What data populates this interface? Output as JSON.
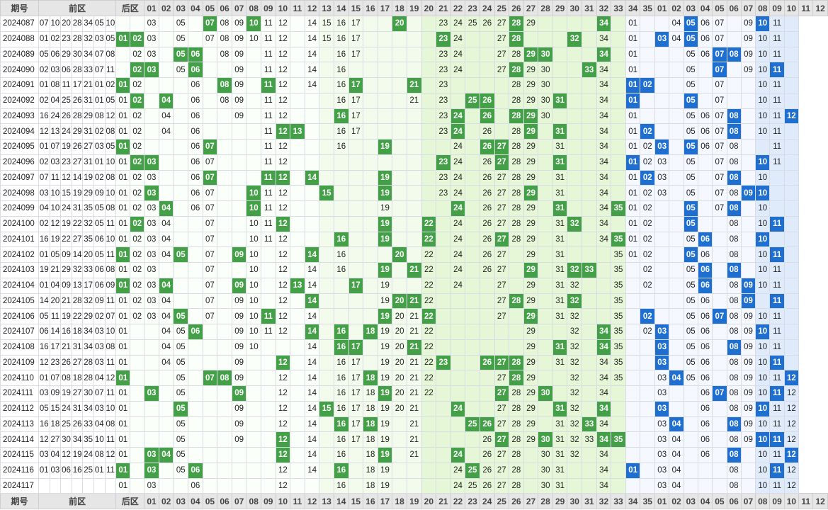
{
  "header": {
    "issue": "期号",
    "front": "前区",
    "back": "后区"
  },
  "front_columns": [
    "01",
    "02",
    "03",
    "04",
    "05",
    "06",
    "07",
    "08",
    "09",
    "10",
    "11",
    "12",
    "13",
    "14",
    "15",
    "16",
    "17",
    "18",
    "19",
    "20",
    "21",
    "22",
    "23",
    "24",
    "25",
    "26",
    "27",
    "28",
    "29",
    "30",
    "31",
    "32",
    "33",
    "34",
    "35"
  ],
  "back_columns": [
    "01",
    "02",
    "03",
    "04",
    "05",
    "06",
    "07",
    "08",
    "09",
    "10",
    "11",
    "12"
  ],
  "rows": [
    {
      "issue": "2024087",
      "front": [
        "07",
        "10",
        "20",
        "28",
        "34"
      ],
      "back": [
        "05",
        "10"
      ],
      "ff": [
        "03",
        "05",
        "08",
        "09",
        "11",
        "12",
        "14",
        "15",
        "16",
        "17",
        "23",
        "24",
        "25",
        "26",
        "27",
        "29"
      ],
      "bf": [
        "01",
        "04",
        "06",
        "07",
        "09",
        "11"
      ]
    },
    {
      "issue": "2024088",
      "front": [
        "01",
        "02",
        "23",
        "28",
        "32"
      ],
      "back": [
        "03",
        "05"
      ],
      "ff": [
        "03",
        "05",
        "07",
        "08",
        "09",
        "10",
        "11",
        "12",
        "14",
        "15",
        "16",
        "17",
        "24",
        "27",
        "34"
      ],
      "bf": [
        "01",
        "04",
        "06",
        "07",
        "09",
        "10",
        "11"
      ]
    },
    {
      "issue": "2024089",
      "front": [
        "05",
        "06",
        "29",
        "30",
        "34"
      ],
      "back": [
        "07",
        "08"
      ],
      "ff": [
        "02",
        "03",
        "08",
        "09",
        "11",
        "12",
        "14",
        "16",
        "17",
        "23",
        "24",
        "27",
        "28"
      ],
      "bf": [
        "01",
        "05",
        "06",
        "09",
        "10",
        "11"
      ]
    },
    {
      "issue": "2024090",
      "front": [
        "02",
        "03",
        "06",
        "28",
        "33"
      ],
      "back": [
        "07",
        "11"
      ],
      "ff": [
        "05",
        "09",
        "11",
        "12",
        "14",
        "16",
        "23",
        "24",
        "27",
        "29",
        "30",
        "34"
      ],
      "bf": [
        "01",
        "05",
        "09",
        "10"
      ]
    },
    {
      "issue": "2024091",
      "front": [
        "01",
        "08",
        "11",
        "17",
        "21"
      ],
      "back": [
        "01",
        "02"
      ],
      "ff": [
        "02",
        "06",
        "09",
        "12",
        "14",
        "16",
        "23",
        "28",
        "29",
        "30",
        "34"
      ],
      "bf": [
        "05",
        "07",
        "10",
        "11"
      ]
    },
    {
      "issue": "2024092",
      "front": [
        "02",
        "04",
        "25",
        "26",
        "31"
      ],
      "back": [
        "01",
        "05"
      ],
      "ff": [
        "01",
        "06",
        "08",
        "09",
        "11",
        "12",
        "16",
        "17",
        "21",
        "23",
        "28",
        "29",
        "30",
        "34"
      ],
      "bf": [
        "05",
        "07",
        "10",
        "11"
      ]
    },
    {
      "issue": "2024093",
      "front": [
        "16",
        "24",
        "26",
        "28",
        "29"
      ],
      "back": [
        "08",
        "12"
      ],
      "ff": [
        "01",
        "02",
        "04",
        "06",
        "09",
        "11",
        "12",
        "17",
        "23",
        "30",
        "34"
      ],
      "bf": [
        "01",
        "05",
        "06",
        "07",
        "10",
        "11"
      ]
    },
    {
      "issue": "2024094",
      "front": [
        "12",
        "13",
        "24",
        "29",
        "31"
      ],
      "back": [
        "02",
        "08"
      ],
      "ff": [
        "01",
        "02",
        "04",
        "06",
        "11",
        "16",
        "17",
        "23",
        "26",
        "28",
        "34"
      ],
      "bf": [
        "01",
        "05",
        "06",
        "07",
        "10",
        "11"
      ]
    },
    {
      "issue": "2024095",
      "front": [
        "01",
        "07",
        "19",
        "26",
        "27"
      ],
      "back": [
        "03",
        "05"
      ],
      "ff": [
        "02",
        "06",
        "11",
        "12",
        "16",
        "24",
        "28",
        "29",
        "31",
        "34"
      ],
      "bf": [
        "01",
        "02",
        "06",
        "07",
        "08",
        "11"
      ]
    },
    {
      "issue": "2024096",
      "front": [
        "02",
        "03",
        "23",
        "27",
        "31"
      ],
      "back": [
        "01",
        "10"
      ],
      "ff": [
        "01",
        "06",
        "07",
        "11",
        "12",
        "24",
        "26",
        "28",
        "29",
        "34"
      ],
      "bf": [
        "02",
        "03",
        "05",
        "07",
        "08",
        "11"
      ]
    },
    {
      "issue": "2024097",
      "front": [
        "07",
        "11",
        "12",
        "14",
        "19"
      ],
      "back": [
        "02",
        "08"
      ],
      "ff": [
        "01",
        "02",
        "03",
        "06",
        "23",
        "24",
        "26",
        "27",
        "28",
        "29",
        "31",
        "34"
      ],
      "bf": [
        "01",
        "03",
        "05",
        "07",
        "10"
      ]
    },
    {
      "issue": "2024098",
      "front": [
        "03",
        "10",
        "15",
        "19",
        "29"
      ],
      "back": [
        "09",
        "10"
      ],
      "ff": [
        "01",
        "02",
        "06",
        "07",
        "11",
        "12",
        "23",
        "24",
        "26",
        "27",
        "28",
        "31",
        "34"
      ],
      "bf": [
        "01",
        "02",
        "03",
        "05",
        "07",
        "08"
      ]
    },
    {
      "issue": "2024099",
      "front": [
        "04",
        "10",
        "24",
        "31",
        "35"
      ],
      "back": [
        "05",
        "08"
      ],
      "ff": [
        "01",
        "02",
        "03",
        "06",
        "07",
        "11",
        "12",
        "19",
        "26",
        "27",
        "28",
        "29",
        "34"
      ],
      "bf": [
        "01",
        "02",
        "07",
        "10"
      ]
    },
    {
      "issue": "2024100",
      "front": [
        "02",
        "12",
        "19",
        "22",
        "32"
      ],
      "back": [
        "05",
        "11"
      ],
      "ff": [
        "01",
        "03",
        "04",
        "07",
        "10",
        "11",
        "24",
        "26",
        "27",
        "28",
        "29",
        "31",
        "34"
      ],
      "bf": [
        "01",
        "02",
        "08",
        "10"
      ]
    },
    {
      "issue": "2024101",
      "front": [
        "16",
        "19",
        "22",
        "27",
        "35"
      ],
      "back": [
        "06",
        "10"
      ],
      "ff": [
        "01",
        "02",
        "03",
        "04",
        "07",
        "10",
        "11",
        "12",
        "24",
        "26",
        "28",
        "29",
        "31",
        "34"
      ],
      "bf": [
        "01",
        "02",
        "05",
        "08"
      ]
    },
    {
      "issue": "2024102",
      "front": [
        "01",
        "05",
        "09",
        "14",
        "20"
      ],
      "back": [
        "05",
        "11"
      ],
      "ff": [
        "02",
        "03",
        "04",
        "07",
        "10",
        "12",
        "16",
        "22",
        "24",
        "26",
        "27",
        "29",
        "31",
        "35"
      ],
      "bf": [
        "01",
        "02",
        "06",
        "08",
        "10"
      ]
    },
    {
      "issue": "2024103",
      "front": [
        "19",
        "21",
        "29",
        "32",
        "33"
      ],
      "back": [
        "06",
        "08"
      ],
      "ff": [
        "01",
        "02",
        "03",
        "07",
        "10",
        "12",
        "14",
        "16",
        "22",
        "24",
        "26",
        "27",
        "31",
        "35"
      ],
      "bf": [
        "02",
        "05",
        "10",
        "11"
      ]
    },
    {
      "issue": "2024104",
      "front": [
        "01",
        "04",
        "09",
        "13",
        "17"
      ],
      "back": [
        "06",
        "09"
      ],
      "ff": [
        "02",
        "03",
        "07",
        "10",
        "12",
        "14",
        "19",
        "22",
        "24",
        "27",
        "29",
        "31",
        "32",
        "35"
      ],
      "bf": [
        "02",
        "05",
        "08",
        "10",
        "11"
      ]
    },
    {
      "issue": "2024105",
      "front": [
        "14",
        "20",
        "21",
        "28",
        "32"
      ],
      "back": [
        "09",
        "11"
      ],
      "ff": [
        "01",
        "02",
        "03",
        "04",
        "07",
        "09",
        "10",
        "12",
        "19",
        "22",
        "27",
        "29",
        "31",
        "35"
      ],
      "bf": [
        "05",
        "06",
        "08"
      ]
    },
    {
      "issue": "2024106",
      "front": [
        "05",
        "11",
        "19",
        "22",
        "29"
      ],
      "back": [
        "02",
        "07"
      ],
      "ff": [
        "01",
        "02",
        "03",
        "04",
        "07",
        "09",
        "10",
        "12",
        "14",
        "20",
        "21",
        "27",
        "31",
        "32",
        "35"
      ],
      "bf": [
        "05",
        "06",
        "08",
        "09",
        "10",
        "11"
      ]
    },
    {
      "issue": "2024107",
      "front": [
        "06",
        "14",
        "16",
        "18",
        "34"
      ],
      "back": [
        "03",
        "10"
      ],
      "ff": [
        "01",
        "04",
        "05",
        "09",
        "10",
        "11",
        "12",
        "19",
        "20",
        "21",
        "22",
        "29",
        "32",
        "35"
      ],
      "bf": [
        "02",
        "05",
        "06",
        "08",
        "09",
        "11"
      ]
    },
    {
      "issue": "2024108",
      "front": [
        "16",
        "17",
        "21",
        "31",
        "34"
      ],
      "back": [
        "03",
        "08"
      ],
      "ff": [
        "01",
        "04",
        "05",
        "09",
        "10",
        "14",
        "19",
        "20",
        "22",
        "29",
        "32",
        "35"
      ],
      "bf": [
        "05",
        "06",
        "09",
        "10",
        "11"
      ]
    },
    {
      "issue": "2024109",
      "front": [
        "12",
        "23",
        "26",
        "27",
        "28"
      ],
      "back": [
        "03",
        "11"
      ],
      "ff": [
        "01",
        "04",
        "05",
        "09",
        "14",
        "16",
        "17",
        "19",
        "20",
        "21",
        "22",
        "29",
        "31",
        "32",
        "34",
        "35"
      ],
      "bf": [
        "05",
        "06",
        "08",
        "09",
        "10"
      ]
    },
    {
      "issue": "2024110",
      "front": [
        "01",
        "07",
        "08",
        "18",
        "28"
      ],
      "back": [
        "04",
        "12"
      ],
      "ff": [
        "05",
        "09",
        "12",
        "14",
        "16",
        "17",
        "19",
        "20",
        "21",
        "22",
        "27",
        "29",
        "32",
        "34",
        "35"
      ],
      "bf": [
        "03",
        "05",
        "06",
        "08",
        "09",
        "10",
        "11"
      ]
    },
    {
      "issue": "2024111",
      "front": [
        "03",
        "09",
        "19",
        "27",
        "30"
      ],
      "back": [
        "07",
        "11"
      ],
      "ff": [
        "01",
        "05",
        "12",
        "14",
        "16",
        "17",
        "18",
        "20",
        "21",
        "22",
        "28",
        "29",
        "32",
        "34"
      ],
      "bf": [
        "03",
        "06",
        "08",
        "09",
        "10",
        "12"
      ]
    },
    {
      "issue": "2024112",
      "front": [
        "05",
        "15",
        "24",
        "31",
        "34"
      ],
      "back": [
        "03",
        "10"
      ],
      "ff": [
        "01",
        "09",
        "12",
        "14",
        "16",
        "17",
        "18",
        "19",
        "20",
        "21",
        "27",
        "28",
        "29",
        "32"
      ],
      "bf": [
        "06",
        "08",
        "09",
        "11",
        "12"
      ]
    },
    {
      "issue": "2024113",
      "front": [
        "16",
        "18",
        "25",
        "26",
        "33"
      ],
      "back": [
        "04",
        "08"
      ],
      "ff": [
        "01",
        "05",
        "09",
        "12",
        "14",
        "17",
        "19",
        "21",
        "27",
        "28",
        "29",
        "31",
        "32",
        "34"
      ],
      "bf": [
        "03",
        "06",
        "09",
        "10",
        "11",
        "12"
      ]
    },
    {
      "issue": "2024114",
      "front": [
        "12",
        "27",
        "30",
        "34",
        "35"
      ],
      "back": [
        "10",
        "11"
      ],
      "ff": [
        "01",
        "05",
        "09",
        "12",
        "14",
        "16",
        "17",
        "18",
        "19",
        "21",
        "26",
        "28",
        "29",
        "31",
        "32",
        "33"
      ],
      "bf": [
        "03",
        "04",
        "06",
        "08",
        "09",
        "12"
      ]
    },
    {
      "issue": "2024115",
      "front": [
        "03",
        "04",
        "12",
        "19",
        "24"
      ],
      "back": [
        "08",
        "12"
      ],
      "ff": [
        "01",
        "05",
        "14",
        "16",
        "18",
        "21",
        "26",
        "27",
        "28",
        "30",
        "31",
        "32",
        "34"
      ],
      "bf": [
        "03",
        "04",
        "06",
        "10",
        "11"
      ]
    },
    {
      "issue": "2024116",
      "front": [
        "01",
        "03",
        "06",
        "16",
        "25"
      ],
      "back": [
        "01",
        "11"
      ],
      "ff": [
        "01",
        "05",
        "12",
        "14",
        "18",
        "19",
        "24",
        "26",
        "27",
        "28",
        "30",
        "31",
        "34"
      ],
      "bf": [
        "03",
        "04",
        "08",
        "10",
        "12"
      ]
    },
    {
      "issue": "2024117",
      "front": [],
      "back": [],
      "ff": [
        "01",
        "03",
        "06",
        "12",
        "16",
        "18",
        "19",
        "24",
        "25",
        "26",
        "27",
        "28",
        "30",
        "31",
        "34"
      ],
      "bf": [
        "03",
        "04",
        "08",
        "10",
        "11",
        "12"
      ]
    }
  ]
}
